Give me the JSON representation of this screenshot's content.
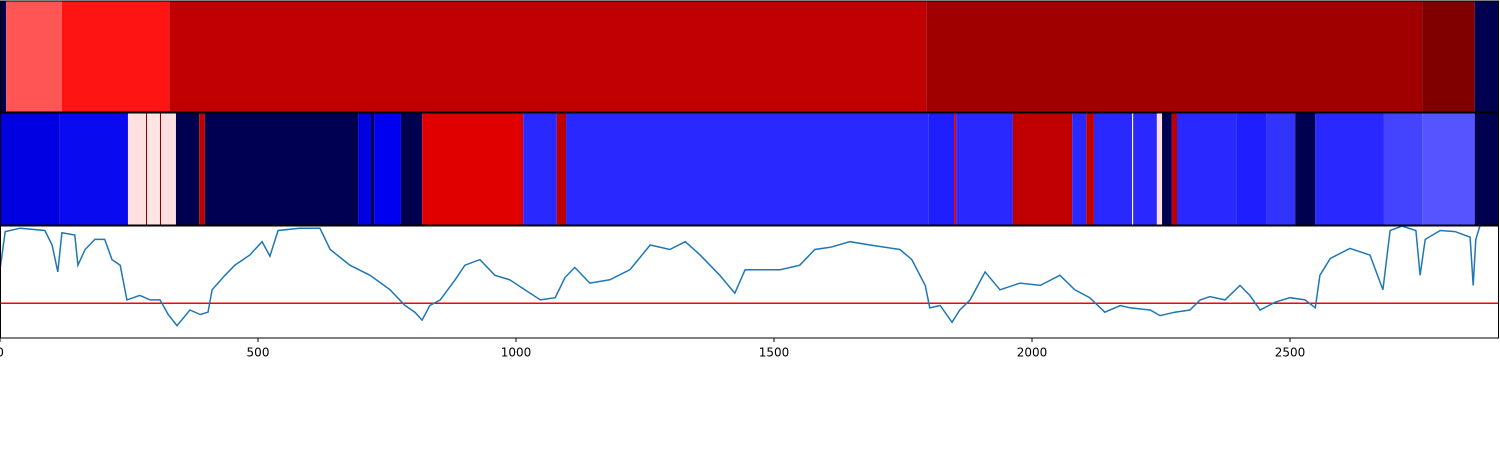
{
  "chart_data": [
    {
      "type": "strip",
      "xlim": [
        0,
        2905
      ],
      "edges": [
        0,
        12,
        120,
        328,
        1795,
        2756,
        2858,
        2905
      ],
      "colors": [
        "#000050",
        "#ff5555",
        "#ff1414",
        "#c00000",
        "#a00000",
        "#800000",
        "#000050"
      ]
    },
    {
      "type": "strip",
      "xlim": [
        0,
        2905
      ],
      "edges": [
        0,
        116,
        248,
        283,
        285,
        310,
        312,
        341,
        386,
        397,
        694,
        719,
        725,
        777,
        818,
        1014,
        1079,
        1097,
        1800,
        1849,
        1853,
        1963,
        2078,
        2105,
        2120,
        2194,
        2196,
        2242,
        2252,
        2271,
        2281,
        2397,
        2455,
        2510,
        2549,
        2682,
        2756,
        2858,
        2905
      ],
      "colors": [
        "#0000e0",
        "#0a0af0",
        "#ffe0e0",
        "#800000",
        "#ffe4e4",
        "#800000",
        "#ffe0e0",
        "#000050",
        "#c00000",
        "#000050",
        "#0000e0",
        "#000050",
        "#0000f0",
        "#000050",
        "#e00000",
        "#2828ff",
        "#c00000",
        "#2828ff",
        "#1e1eff",
        "#e00000",
        "#2828ff",
        "#c00000",
        "#2828ff",
        "#c00000",
        "#2828ff",
        "#ffffff",
        "#2828ff",
        "#ffe0e0",
        "#000050",
        "#c00000",
        "#2828ff",
        "#1e1eff",
        "#3333ff",
        "#000050",
        "#2828ff",
        "#4444ff",
        "#5555ff",
        "#000050"
      ]
    },
    {
      "type": "line",
      "xlim": [
        0,
        2905
      ],
      "ylim": [
        0,
        1
      ],
      "xticks": [
        0,
        500,
        1000,
        1500,
        2000,
        2500
      ],
      "color": "#1f77b4",
      "hline": 0.31,
      "hline_color": "#ff0000",
      "x": [
        0,
        10,
        39,
        87,
        101,
        112,
        120,
        145,
        151,
        165,
        184,
        203,
        217,
        233,
        246,
        271,
        291,
        310,
        326,
        343,
        368,
        388,
        403,
        411,
        436,
        455,
        484,
        508,
        523,
        539,
        581,
        620,
        640,
        678,
        717,
        756,
        785,
        804,
        818,
        833,
        853,
        882,
        901,
        930,
        959,
        988,
        1017,
        1047,
        1076,
        1095,
        1114,
        1143,
        1182,
        1221,
        1260,
        1298,
        1328,
        1357,
        1395,
        1424,
        1444,
        1473,
        1512,
        1550,
        1579,
        1609,
        1647,
        1686,
        1744,
        1767,
        1793,
        1802,
        1822,
        1845,
        1860,
        1880,
        1909,
        1938,
        1977,
        2016,
        2054,
        2083,
        2112,
        2141,
        2171,
        2190,
        2229,
        2248,
        2277,
        2306,
        2326,
        2345,
        2374,
        2403,
        2422,
        2442,
        2471,
        2500,
        2529,
        2549,
        2558,
        2578,
        2616,
        2655,
        2680,
        2694,
        2717,
        2744,
        2752,
        2762,
        2791,
        2820,
        2849,
        2855,
        2860,
        2868
      ],
      "values": [
        0.61,
        0.95,
        0.98,
        0.96,
        0.83,
        0.59,
        0.94,
        0.92,
        0.65,
        0.79,
        0.88,
        0.88,
        0.7,
        0.65,
        0.34,
        0.38,
        0.34,
        0.34,
        0.21,
        0.11,
        0.25,
        0.21,
        0.23,
        0.43,
        0.56,
        0.65,
        0.74,
        0.86,
        0.73,
        0.96,
        0.98,
        0.98,
        0.79,
        0.65,
        0.56,
        0.43,
        0.29,
        0.23,
        0.16,
        0.29,
        0.34,
        0.52,
        0.65,
        0.7,
        0.56,
        0.52,
        0.43,
        0.34,
        0.36,
        0.54,
        0.63,
        0.49,
        0.52,
        0.61,
        0.83,
        0.79,
        0.86,
        0.74,
        0.56,
        0.4,
        0.61,
        0.61,
        0.61,
        0.65,
        0.79,
        0.81,
        0.86,
        0.83,
        0.79,
        0.7,
        0.47,
        0.27,
        0.29,
        0.14,
        0.25,
        0.34,
        0.59,
        0.43,
        0.49,
        0.47,
        0.56,
        0.43,
        0.36,
        0.23,
        0.29,
        0.27,
        0.25,
        0.2,
        0.23,
        0.25,
        0.34,
        0.37,
        0.34,
        0.47,
        0.38,
        0.25,
        0.32,
        0.36,
        0.34,
        0.27,
        0.56,
        0.71,
        0.8,
        0.74,
        0.43,
        0.96,
        1.0,
        0.96,
        0.56,
        0.88,
        0.96,
        0.95,
        0.9,
        0.47,
        0.88,
        1.0
      ]
    }
  ]
}
